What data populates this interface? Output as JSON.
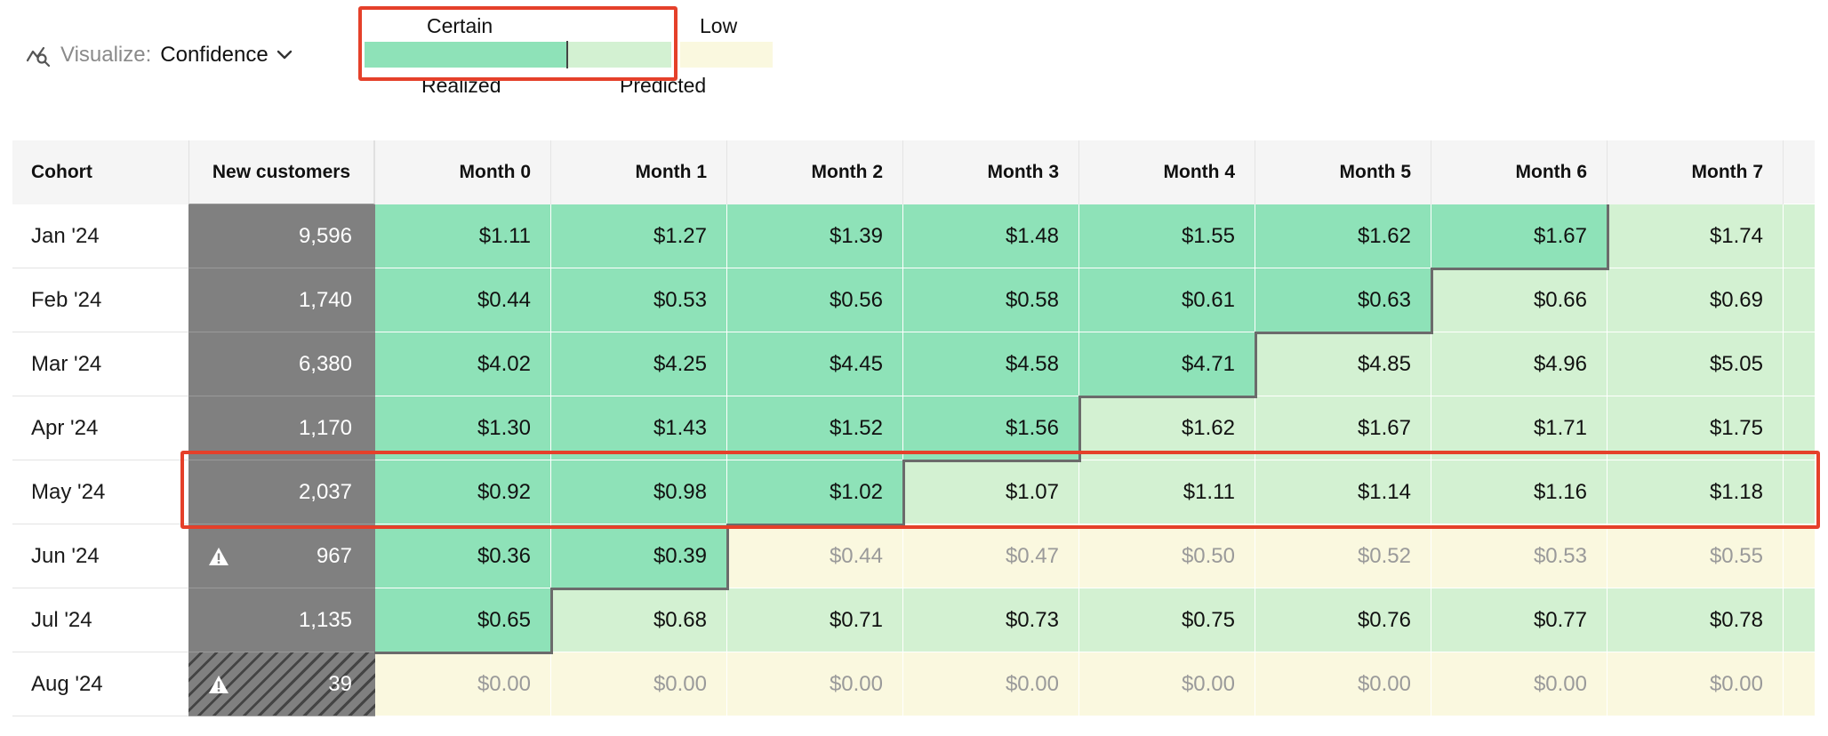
{
  "visualize": {
    "label": "Visualize:",
    "value": "Confidence",
    "icon": "visualize-icon"
  },
  "legend": {
    "certain": "Certain",
    "low": "Low",
    "realized": "Realized",
    "predicted": "Predicted",
    "colors": {
      "realized": "#8ee2b8",
      "predicted": "#d3f1d2",
      "low": "#faf8df",
      "highlight": "#e5402a"
    }
  },
  "table": {
    "headers": {
      "cohort": "Cohort",
      "new_customers": "New customers",
      "months": [
        "Month 0",
        "Month 1",
        "Month 2",
        "Month 3",
        "Month 4",
        "Month 5",
        "Month 6",
        "Month 7"
      ]
    },
    "rows": [
      {
        "cohort": "Jan '24",
        "new_customers": "9,596",
        "warning": false,
        "hatched": false,
        "values": [
          "$1.11",
          "$1.27",
          "$1.39",
          "$1.48",
          "$1.55",
          "$1.62",
          "$1.67",
          "$1.74"
        ],
        "states": [
          "realized",
          "realized",
          "realized",
          "realized",
          "realized",
          "realized",
          "realized",
          "predicted"
        ]
      },
      {
        "cohort": "Feb '24",
        "new_customers": "1,740",
        "warning": false,
        "hatched": false,
        "values": [
          "$0.44",
          "$0.53",
          "$0.56",
          "$0.58",
          "$0.61",
          "$0.63",
          "$0.66",
          "$0.69"
        ],
        "states": [
          "realized",
          "realized",
          "realized",
          "realized",
          "realized",
          "realized",
          "predicted",
          "predicted"
        ]
      },
      {
        "cohort": "Mar '24",
        "new_customers": "6,380",
        "warning": false,
        "hatched": false,
        "values": [
          "$4.02",
          "$4.25",
          "$4.45",
          "$4.58",
          "$4.71",
          "$4.85",
          "$4.96",
          "$5.05"
        ],
        "states": [
          "realized",
          "realized",
          "realized",
          "realized",
          "realized",
          "predicted",
          "predicted",
          "predicted"
        ]
      },
      {
        "cohort": "Apr '24",
        "new_customers": "1,170",
        "warning": false,
        "hatched": false,
        "values": [
          "$1.30",
          "$1.43",
          "$1.52",
          "$1.56",
          "$1.62",
          "$1.67",
          "$1.71",
          "$1.75"
        ],
        "states": [
          "realized",
          "realized",
          "realized",
          "realized",
          "predicted",
          "predicted",
          "predicted",
          "predicted"
        ]
      },
      {
        "cohort": "May '24",
        "new_customers": "2,037",
        "warning": false,
        "hatched": false,
        "values": [
          "$0.92",
          "$0.98",
          "$1.02",
          "$1.07",
          "$1.11",
          "$1.14",
          "$1.16",
          "$1.18"
        ],
        "states": [
          "realized",
          "realized",
          "realized",
          "predicted",
          "predicted",
          "predicted",
          "predicted",
          "predicted"
        ]
      },
      {
        "cohort": "Jun '24",
        "new_customers": "967",
        "warning": true,
        "hatched": false,
        "values": [
          "$0.36",
          "$0.39",
          "$0.44",
          "$0.47",
          "$0.50",
          "$0.52",
          "$0.53",
          "$0.55"
        ],
        "states": [
          "realized",
          "realized",
          "low",
          "low",
          "low",
          "low",
          "low",
          "low"
        ]
      },
      {
        "cohort": "Jul '24",
        "new_customers": "1,135",
        "warning": false,
        "hatched": false,
        "values": [
          "$0.65",
          "$0.68",
          "$0.71",
          "$0.73",
          "$0.75",
          "$0.76",
          "$0.77",
          "$0.78"
        ],
        "states": [
          "realized",
          "predicted",
          "predicted",
          "predicted",
          "predicted",
          "predicted",
          "predicted",
          "predicted"
        ]
      },
      {
        "cohort": "Aug '24",
        "new_customers": "39",
        "warning": true,
        "hatched": true,
        "values": [
          "$0.00",
          "$0.00",
          "$0.00",
          "$0.00",
          "$0.00",
          "$0.00",
          "$0.00",
          "$0.00"
        ],
        "states": [
          "low",
          "low",
          "low",
          "low",
          "low",
          "low",
          "low",
          "low"
        ]
      }
    ],
    "highlighted_row": "May '24"
  }
}
